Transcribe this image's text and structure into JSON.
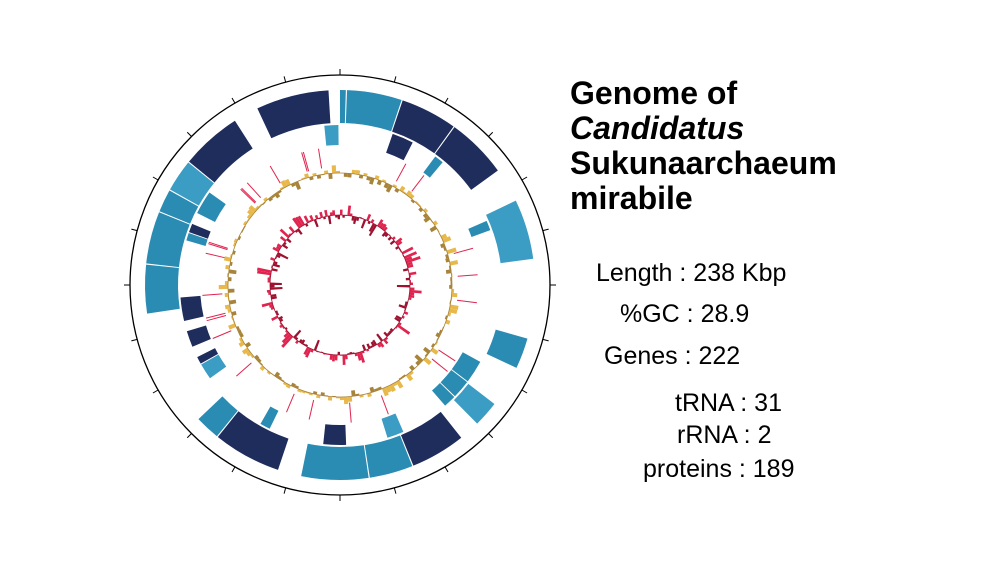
{
  "title": {
    "lines": [
      "Genome of",
      "Candidatus",
      "Sukunaarchaeum",
      "mirabile"
    ]
  },
  "stats": [
    "Length : 238 Kbp",
    "%GC : 28.9",
    "Genes : 222",
    "tRNA : 31",
    "rRNA : 2",
    "proteins : 189"
  ]
}
